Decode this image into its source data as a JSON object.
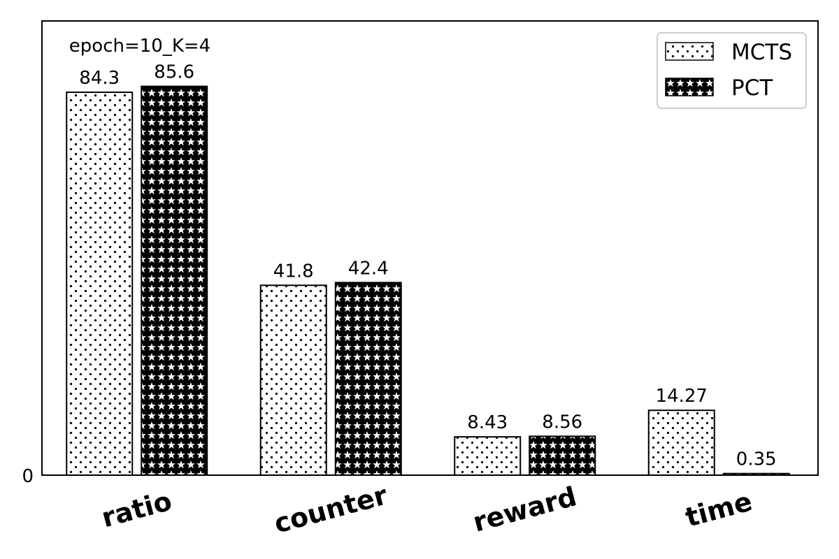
{
  "chart_data": {
    "type": "bar",
    "annotation": "epoch=10_K=4",
    "categories": [
      "ratio",
      "counter",
      "reward",
      "time"
    ],
    "series": [
      {
        "name": "MCTS",
        "hatch": "dots",
        "values": [
          84.3,
          41.8,
          8.43,
          14.27
        ],
        "labels": [
          "84.3",
          "41.8",
          "8.43",
          "14.27"
        ]
      },
      {
        "name": "PCT",
        "hatch": "stars",
        "values": [
          85.6,
          42.4,
          8.56,
          0.35
        ],
        "labels": [
          "85.6",
          "42.4",
          "8.56",
          "0.35"
        ]
      }
    ],
    "ylim": [
      0,
      100
    ],
    "yticks": [
      "0"
    ],
    "xlabel": "",
    "ylabel": "",
    "legend_position": "top-right",
    "grid": false,
    "colors": {
      "bar_fill": "#ffffff",
      "bar_edge": "#000000",
      "hatch": "#000000"
    }
  }
}
